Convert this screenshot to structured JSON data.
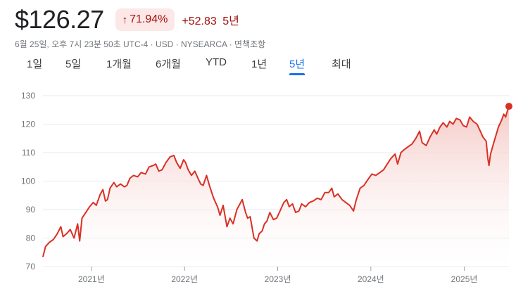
{
  "header": {
    "price": "$126.27",
    "change_percent": "71.94%",
    "change_arrow_icon": "arrow-up-icon",
    "change_abs": "+52.83",
    "change_period": "5년"
  },
  "meta": {
    "line": "6월 25일, 오후 7시 23분 50초 UTC-4 · USD · NYSEARCA · 면책조항"
  },
  "tabs": [
    {
      "label": "1일",
      "active": false
    },
    {
      "label": "5일",
      "active": false
    },
    {
      "label": "1개월",
      "active": false
    },
    {
      "label": "6개월",
      "active": false
    },
    {
      "label": "YTD",
      "active": false
    },
    {
      "label": "1년",
      "active": false
    },
    {
      "label": "5년",
      "active": true
    },
    {
      "label": "최대",
      "active": false
    }
  ],
  "colors": {
    "line": "#d93025",
    "fill_top": "#f4c7c3",
    "negative_text": "#a50e0e",
    "badge_bg": "#fce8e6",
    "active_tab": "#1a73e8"
  },
  "chart_data": {
    "type": "area",
    "y_ticks": [
      70,
      80,
      90,
      100,
      110,
      120,
      130
    ],
    "ylim": [
      70,
      130
    ],
    "x_ticks": [
      {
        "label": "2021년",
        "date": "2021-01-01"
      },
      {
        "label": "2022년",
        "date": "2022-01-01"
      },
      {
        "label": "2023년",
        "date": "2023-01-01"
      },
      {
        "label": "2024년",
        "date": "2024-01-01"
      },
      {
        "label": "2025년",
        "date": "2025-01-01"
      }
    ],
    "xlim": [
      "2020-06-25",
      "2025-06-25"
    ],
    "grid": true,
    "series": [
      {
        "points": [
          [
            "2020-06-25",
            73.4
          ],
          [
            "2020-07-05",
            77
          ],
          [
            "2020-07-20",
            78.5
          ],
          [
            "2020-08-05",
            79.5
          ],
          [
            "2020-08-20",
            81.5
          ],
          [
            "2020-09-03",
            84
          ],
          [
            "2020-09-12",
            80.5
          ],
          [
            "2020-09-25",
            81.5
          ],
          [
            "2020-10-10",
            83
          ],
          [
            "2020-10-25",
            80
          ],
          [
            "2020-11-08",
            85
          ],
          [
            "2020-11-16",
            79
          ],
          [
            "2020-11-25",
            87
          ],
          [
            "2020-12-10",
            89
          ],
          [
            "2020-12-25",
            91
          ],
          [
            "2021-01-08",
            92.5
          ],
          [
            "2021-01-20",
            91.5
          ],
          [
            "2021-02-05",
            95.5
          ],
          [
            "2021-02-15",
            97
          ],
          [
            "2021-02-25",
            93
          ],
          [
            "2021-03-05",
            93.5
          ],
          [
            "2021-03-15",
            97.5
          ],
          [
            "2021-03-30",
            99.5
          ],
          [
            "2021-04-10",
            98
          ],
          [
            "2021-04-25",
            99
          ],
          [
            "2021-05-10",
            98
          ],
          [
            "2021-05-20",
            98.5
          ],
          [
            "2021-06-01",
            101
          ],
          [
            "2021-06-15",
            102
          ],
          [
            "2021-07-01",
            101.5
          ],
          [
            "2021-07-15",
            103
          ],
          [
            "2021-08-01",
            102.5
          ],
          [
            "2021-08-15",
            105
          ],
          [
            "2021-09-01",
            105.5
          ],
          [
            "2021-09-10",
            106
          ],
          [
            "2021-09-22",
            103.5
          ],
          [
            "2021-10-05",
            104
          ],
          [
            "2021-10-20",
            106.5
          ],
          [
            "2021-11-05",
            108.5
          ],
          [
            "2021-11-20",
            109
          ],
          [
            "2021-12-01",
            106.5
          ],
          [
            "2021-12-15",
            104.5
          ],
          [
            "2021-12-28",
            107.5
          ],
          [
            "2022-01-05",
            106.5
          ],
          [
            "2022-01-15",
            104
          ],
          [
            "2022-01-28",
            102
          ],
          [
            "2022-02-10",
            103.5
          ],
          [
            "2022-02-25",
            100.5
          ],
          [
            "2022-03-05",
            99
          ],
          [
            "2022-03-15",
            98.5
          ],
          [
            "2022-03-28",
            102
          ],
          [
            "2022-04-10",
            98
          ],
          [
            "2022-04-25",
            94
          ],
          [
            "2022-05-10",
            91
          ],
          [
            "2022-05-20",
            88
          ],
          [
            "2022-06-01",
            91.5
          ],
          [
            "2022-06-16",
            84
          ],
          [
            "2022-06-28",
            87
          ],
          [
            "2022-07-10",
            85
          ],
          [
            "2022-07-25",
            90
          ],
          [
            "2022-08-15",
            93.5
          ],
          [
            "2022-08-28",
            89
          ],
          [
            "2022-09-05",
            87
          ],
          [
            "2022-09-15",
            87.5
          ],
          [
            "2022-09-30",
            80
          ],
          [
            "2022-10-12",
            79
          ],
          [
            "2022-10-20",
            81.5
          ],
          [
            "2022-11-01",
            82.5
          ],
          [
            "2022-11-10",
            85
          ],
          [
            "2022-11-20",
            86
          ],
          [
            "2022-12-01",
            89
          ],
          [
            "2022-12-15",
            86.5
          ],
          [
            "2022-12-28",
            87
          ],
          [
            "2023-01-10",
            89.5
          ],
          [
            "2023-01-25",
            92.5
          ],
          [
            "2023-02-05",
            93.5
          ],
          [
            "2023-02-15",
            91
          ],
          [
            "2023-02-28",
            92
          ],
          [
            "2023-03-12",
            89
          ],
          [
            "2023-03-25",
            89.5
          ],
          [
            "2023-04-05",
            92
          ],
          [
            "2023-04-20",
            91
          ],
          [
            "2023-05-05",
            92.5
          ],
          [
            "2023-05-20",
            93
          ],
          [
            "2023-06-05",
            94
          ],
          [
            "2023-06-20",
            93.5
          ],
          [
            "2023-07-05",
            96
          ],
          [
            "2023-07-20",
            96
          ],
          [
            "2023-08-01",
            97.5
          ],
          [
            "2023-08-10",
            94.5
          ],
          [
            "2023-08-25",
            95.5
          ],
          [
            "2023-09-10",
            93.5
          ],
          [
            "2023-09-25",
            92.5
          ],
          [
            "2023-10-10",
            91.5
          ],
          [
            "2023-10-25",
            89.5
          ],
          [
            "2023-11-05",
            93.5
          ],
          [
            "2023-11-20",
            97.5
          ],
          [
            "2023-12-05",
            98.5
          ],
          [
            "2023-12-20",
            100.5
          ],
          [
            "2024-01-05",
            102.5
          ],
          [
            "2024-01-20",
            102
          ],
          [
            "2024-02-05",
            103
          ],
          [
            "2024-02-20",
            104
          ],
          [
            "2024-03-05",
            106
          ],
          [
            "2024-03-20",
            108
          ],
          [
            "2024-04-05",
            109.5
          ],
          [
            "2024-04-15",
            106
          ],
          [
            "2024-04-28",
            110
          ],
          [
            "2024-05-10",
            111
          ],
          [
            "2024-05-25",
            112
          ],
          [
            "2024-06-10",
            113
          ],
          [
            "2024-06-25",
            115
          ],
          [
            "2024-07-10",
            117.5
          ],
          [
            "2024-07-20",
            113.5
          ],
          [
            "2024-08-05",
            112.5
          ],
          [
            "2024-08-20",
            115.5
          ],
          [
            "2024-09-05",
            118
          ],
          [
            "2024-09-15",
            116.5
          ],
          [
            "2024-09-28",
            119
          ],
          [
            "2024-10-10",
            120.5
          ],
          [
            "2024-10-25",
            119
          ],
          [
            "2024-11-05",
            121
          ],
          [
            "2024-11-18",
            120
          ],
          [
            "2024-12-01",
            122
          ],
          [
            "2024-12-15",
            121.5
          ],
          [
            "2024-12-28",
            119.5
          ],
          [
            "2025-01-10",
            119
          ],
          [
            "2025-01-22",
            122.5
          ],
          [
            "2025-02-05",
            121
          ],
          [
            "2025-02-20",
            120
          ],
          [
            "2025-03-05",
            117.5
          ],
          [
            "2025-03-15",
            115.5
          ],
          [
            "2025-03-28",
            114
          ],
          [
            "2025-04-04",
            107.5
          ],
          [
            "2025-04-08",
            105.5
          ],
          [
            "2025-04-14",
            109.5
          ],
          [
            "2025-04-25",
            113
          ],
          [
            "2025-05-05",
            116
          ],
          [
            "2025-05-15",
            119
          ],
          [
            "2025-05-28",
            121.5
          ],
          [
            "2025-06-05",
            123.5
          ],
          [
            "2025-06-12",
            122.5
          ],
          [
            "2025-06-20",
            125
          ],
          [
            "2025-06-25",
            126.27
          ]
        ]
      }
    ]
  }
}
